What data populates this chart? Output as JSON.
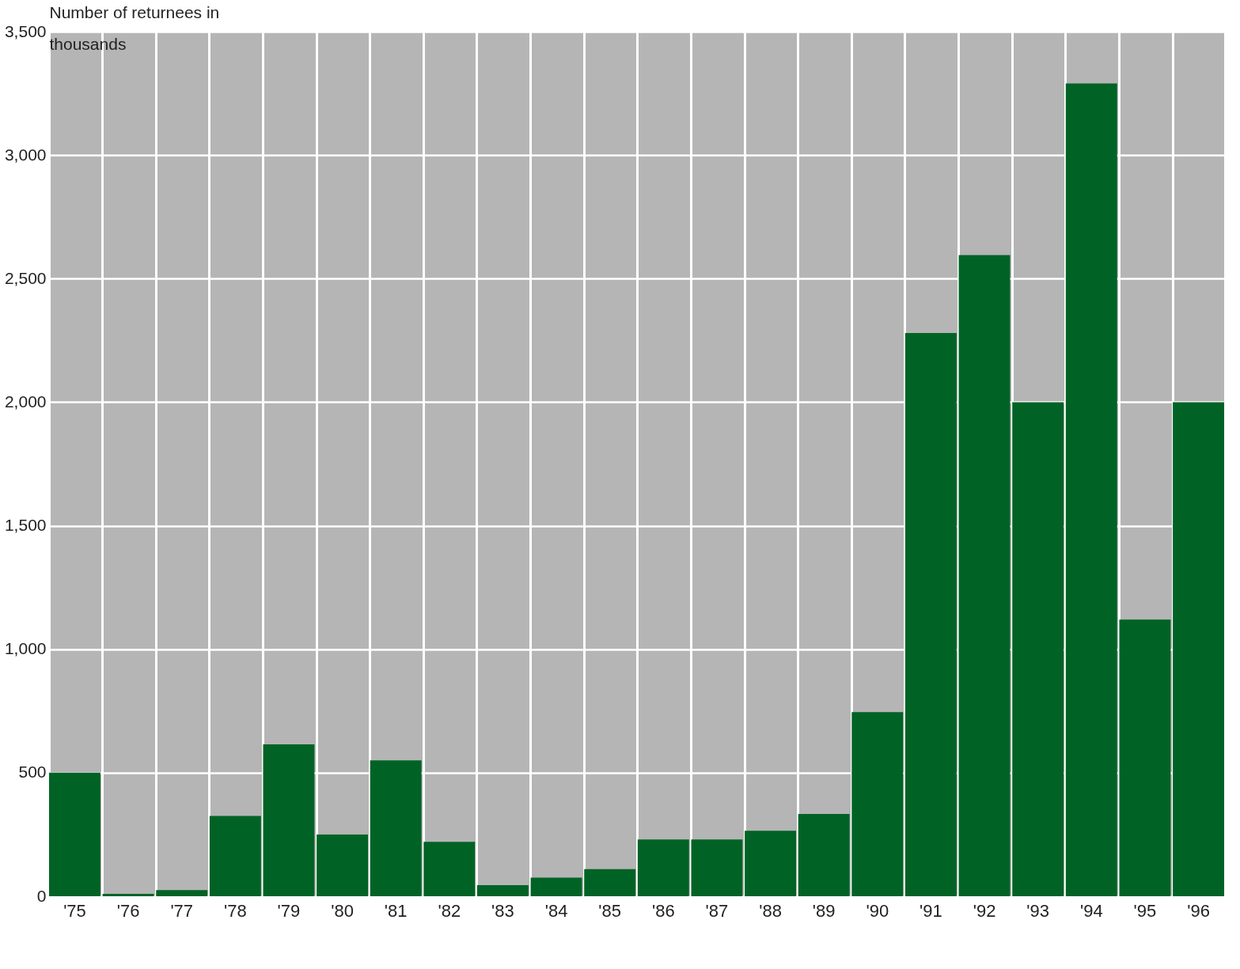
{
  "chart_data": {
    "type": "bar",
    "ylabel": "Number of returnees in thousands",
    "categories": [
      "'75",
      "'76",
      "'77",
      "'78",
      "'79",
      "'80",
      "'81",
      "'82",
      "'83",
      "'84",
      "'85",
      "'86",
      "'87",
      "'88",
      "'89",
      "'90",
      "'91",
      "'92",
      "'93",
      "'94",
      "'95",
      "'96"
    ],
    "values": [
      500,
      10,
      25,
      325,
      615,
      250,
      550,
      220,
      45,
      75,
      110,
      230,
      230,
      265,
      333,
      745,
      2280,
      2595,
      2000,
      3290,
      1120,
      2000
    ],
    "color": "#006325",
    "ylim": [
      0,
      3500
    ],
    "yticks": [
      0,
      500,
      {
        "value": 1000,
        "label": "1,000"
      },
      {
        "value": 1500,
        "label": "1,500"
      },
      {
        "value": 2000,
        "label": "2,000"
      },
      {
        "value": 2500,
        "label": "2,500"
      },
      {
        "value": 3000,
        "label": "3,000"
      },
      {
        "value": 3500,
        "label": "3,500"
      }
    ],
    "grid": true
  }
}
